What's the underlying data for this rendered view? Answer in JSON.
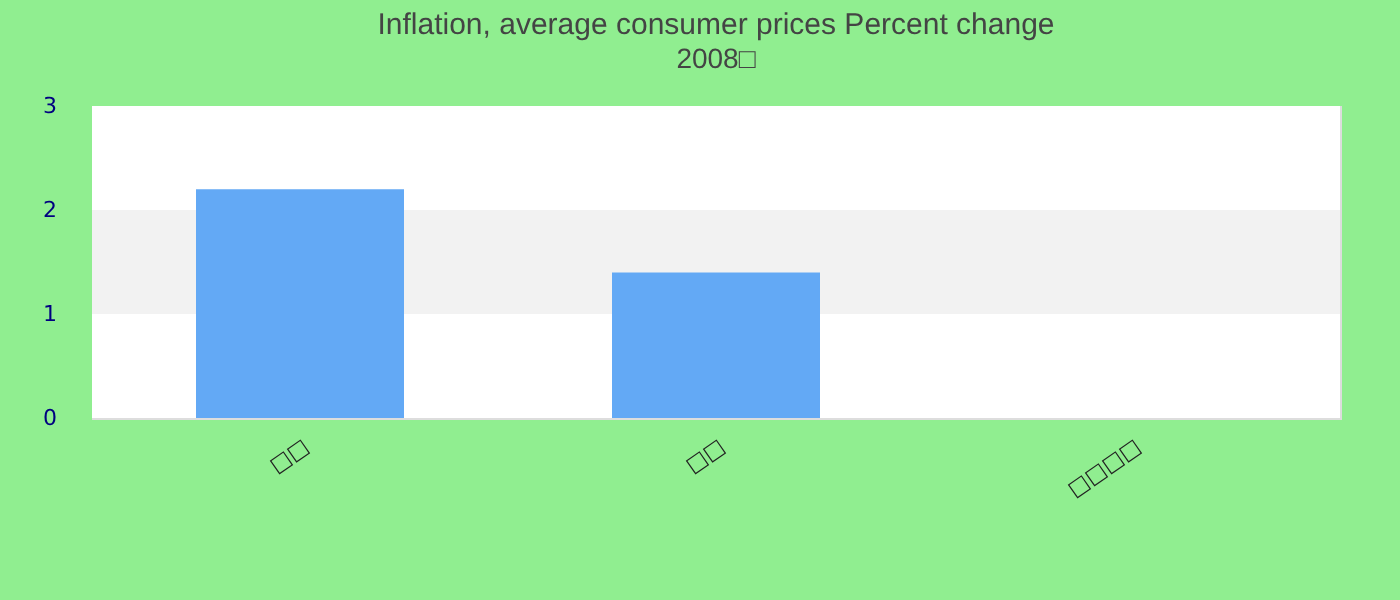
{
  "chart_data": {
    "type": "bar",
    "title": "Inflation, average consumer prices  Percent change",
    "subtitle": "2008□",
    "categories": [
      "□□",
      "□□",
      "□□□□"
    ],
    "values": [
      2.2,
      1.4,
      null
    ],
    "color": "#63a9f5",
    "ylim": [
      0,
      3
    ],
    "yticks": [
      0,
      1,
      2,
      3
    ],
    "bands": [
      {
        "axis": "y",
        "from": 1,
        "to": 2,
        "color": "#f2f2f2"
      }
    ]
  }
}
